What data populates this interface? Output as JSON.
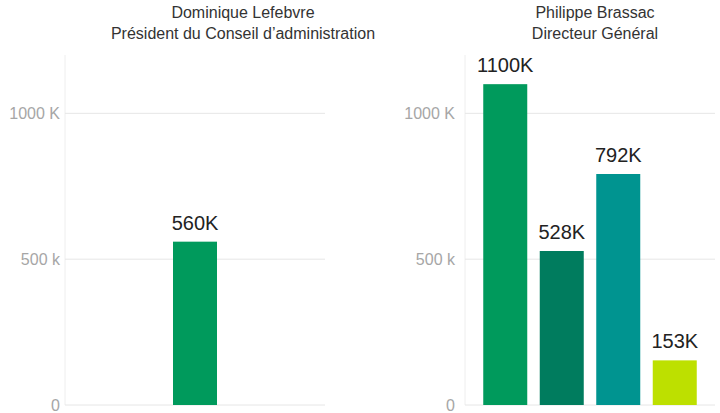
{
  "chart_data": [
    {
      "type": "bar",
      "title": "Dominique Lefebvre",
      "subtitle": "Président du Conseil d’administration",
      "categories": [
        null
      ],
      "values": [
        560
      ],
      "value_labels": [
        "560K"
      ],
      "color": "#009a5c",
      "ylim": [
        0,
        1200
      ],
      "yticks": [
        0,
        {
          "value": 500,
          "label": "500 k"
        },
        {
          "value": 1000,
          "label": "1000 K"
        }
      ],
      "grid": true,
      "data_labels": true
    },
    {
      "type": "bar",
      "title": "Philippe Brassac",
      "subtitle": "Directeur Général",
      "categories": [
        null,
        null,
        null,
        null
      ],
      "values": [
        1100,
        528,
        792,
        153
      ],
      "value_labels": [
        "1100K",
        "528K",
        "792K",
        "153K"
      ],
      "colors": [
        "#009a5c",
        "#007c5e",
        "#009490",
        "#bde000"
      ],
      "ylim": [
        0,
        1200
      ],
      "yticks": [
        0,
        {
          "value": 500,
          "label": "500 k"
        },
        {
          "value": 1000,
          "label": "1000 K"
        }
      ],
      "grid": true,
      "data_labels": true
    }
  ]
}
